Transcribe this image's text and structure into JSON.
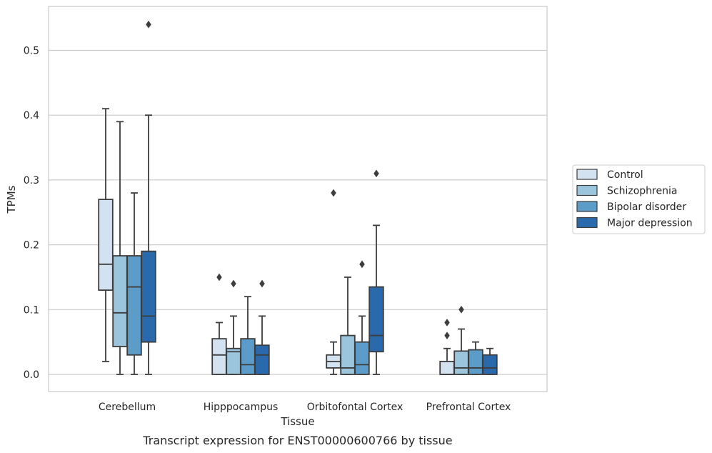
{
  "chart_data": {
    "type": "boxplot",
    "caption": "Transcript expression for ENST00000600766 by tissue",
    "xlabel": "Tissue",
    "ylabel": "TPMs",
    "ylim": [
      -0.026,
      0.567
    ],
    "yticks": [
      0.0,
      0.1,
      0.2,
      0.3,
      0.4,
      0.5
    ],
    "ytick_labels": [
      "0.0",
      "0.1",
      "0.2",
      "0.3",
      "0.4",
      "0.5"
    ],
    "grid": "horizontal",
    "legend_position": "right",
    "categories": [
      "Cerebellum",
      "Hipppocampus",
      "Orbitofontal Cortex",
      "Prefrontal Cortex"
    ],
    "series": [
      {
        "name": "Control",
        "color": "#d2e2f1",
        "boxes": [
          {
            "whisker_low": 0.02,
            "q1": 0.13,
            "median": 0.17,
            "q3": 0.27,
            "whisker_high": 0.41,
            "outliers": []
          },
          {
            "whisker_low": 0.0,
            "q1": 0.0,
            "median": 0.03,
            "q3": 0.055,
            "whisker_high": 0.08,
            "outliers": [
              0.15
            ]
          },
          {
            "whisker_low": 0.0,
            "q1": 0.01,
            "median": 0.02,
            "q3": 0.03,
            "whisker_high": 0.05,
            "outliers": [
              0.28
            ]
          },
          {
            "whisker_low": 0.0,
            "q1": 0.0,
            "median": 0.0,
            "q3": 0.02,
            "whisker_high": 0.04,
            "outliers": [
              0.06,
              0.08
            ]
          }
        ]
      },
      {
        "name": "Schizophrenia",
        "color": "#9bc4dd",
        "boxes": [
          {
            "whisker_low": 0.0,
            "q1": 0.043,
            "median": 0.095,
            "q3": 0.183,
            "whisker_high": 0.39,
            "outliers": []
          },
          {
            "whisker_low": 0.0,
            "q1": 0.0,
            "median": 0.035,
            "q3": 0.04,
            "whisker_high": 0.09,
            "outliers": [
              0.14
            ]
          },
          {
            "whisker_low": 0.0,
            "q1": 0.0,
            "median": 0.01,
            "q3": 0.06,
            "whisker_high": 0.15,
            "outliers": []
          },
          {
            "whisker_low": 0.0,
            "q1": 0.0,
            "median": 0.01,
            "q3": 0.036,
            "whisker_high": 0.07,
            "outliers": [
              0.1
            ]
          }
        ]
      },
      {
        "name": "Bipolar disorder",
        "color": "#5b9cc9",
        "boxes": [
          {
            "whisker_low": 0.0,
            "q1": 0.03,
            "median": 0.135,
            "q3": 0.183,
            "whisker_high": 0.28,
            "outliers": []
          },
          {
            "whisker_low": 0.0,
            "q1": 0.0,
            "median": 0.015,
            "q3": 0.055,
            "whisker_high": 0.12,
            "outliers": []
          },
          {
            "whisker_low": 0.0,
            "q1": 0.0,
            "median": 0.015,
            "q3": 0.05,
            "whisker_high": 0.09,
            "outliers": [
              0.17
            ]
          },
          {
            "whisker_low": 0.0,
            "q1": 0.0,
            "median": 0.01,
            "q3": 0.038,
            "whisker_high": 0.05,
            "outliers": []
          }
        ]
      },
      {
        "name": "Major depression",
        "color": "#2a6aac",
        "boxes": [
          {
            "whisker_low": 0.0,
            "q1": 0.05,
            "median": 0.09,
            "q3": 0.19,
            "whisker_high": 0.4,
            "outliers": [
              0.54
            ]
          },
          {
            "whisker_low": 0.0,
            "q1": 0.0,
            "median": 0.03,
            "q3": 0.045,
            "whisker_high": 0.09,
            "outliers": [
              0.14
            ]
          },
          {
            "whisker_low": 0.0,
            "q1": 0.035,
            "median": 0.06,
            "q3": 0.135,
            "whisker_high": 0.23,
            "outliers": [
              0.31
            ]
          },
          {
            "whisker_low": 0.0,
            "q1": 0.0,
            "median": 0.01,
            "q3": 0.03,
            "whisker_high": 0.04,
            "outliers": []
          }
        ]
      }
    ]
  }
}
